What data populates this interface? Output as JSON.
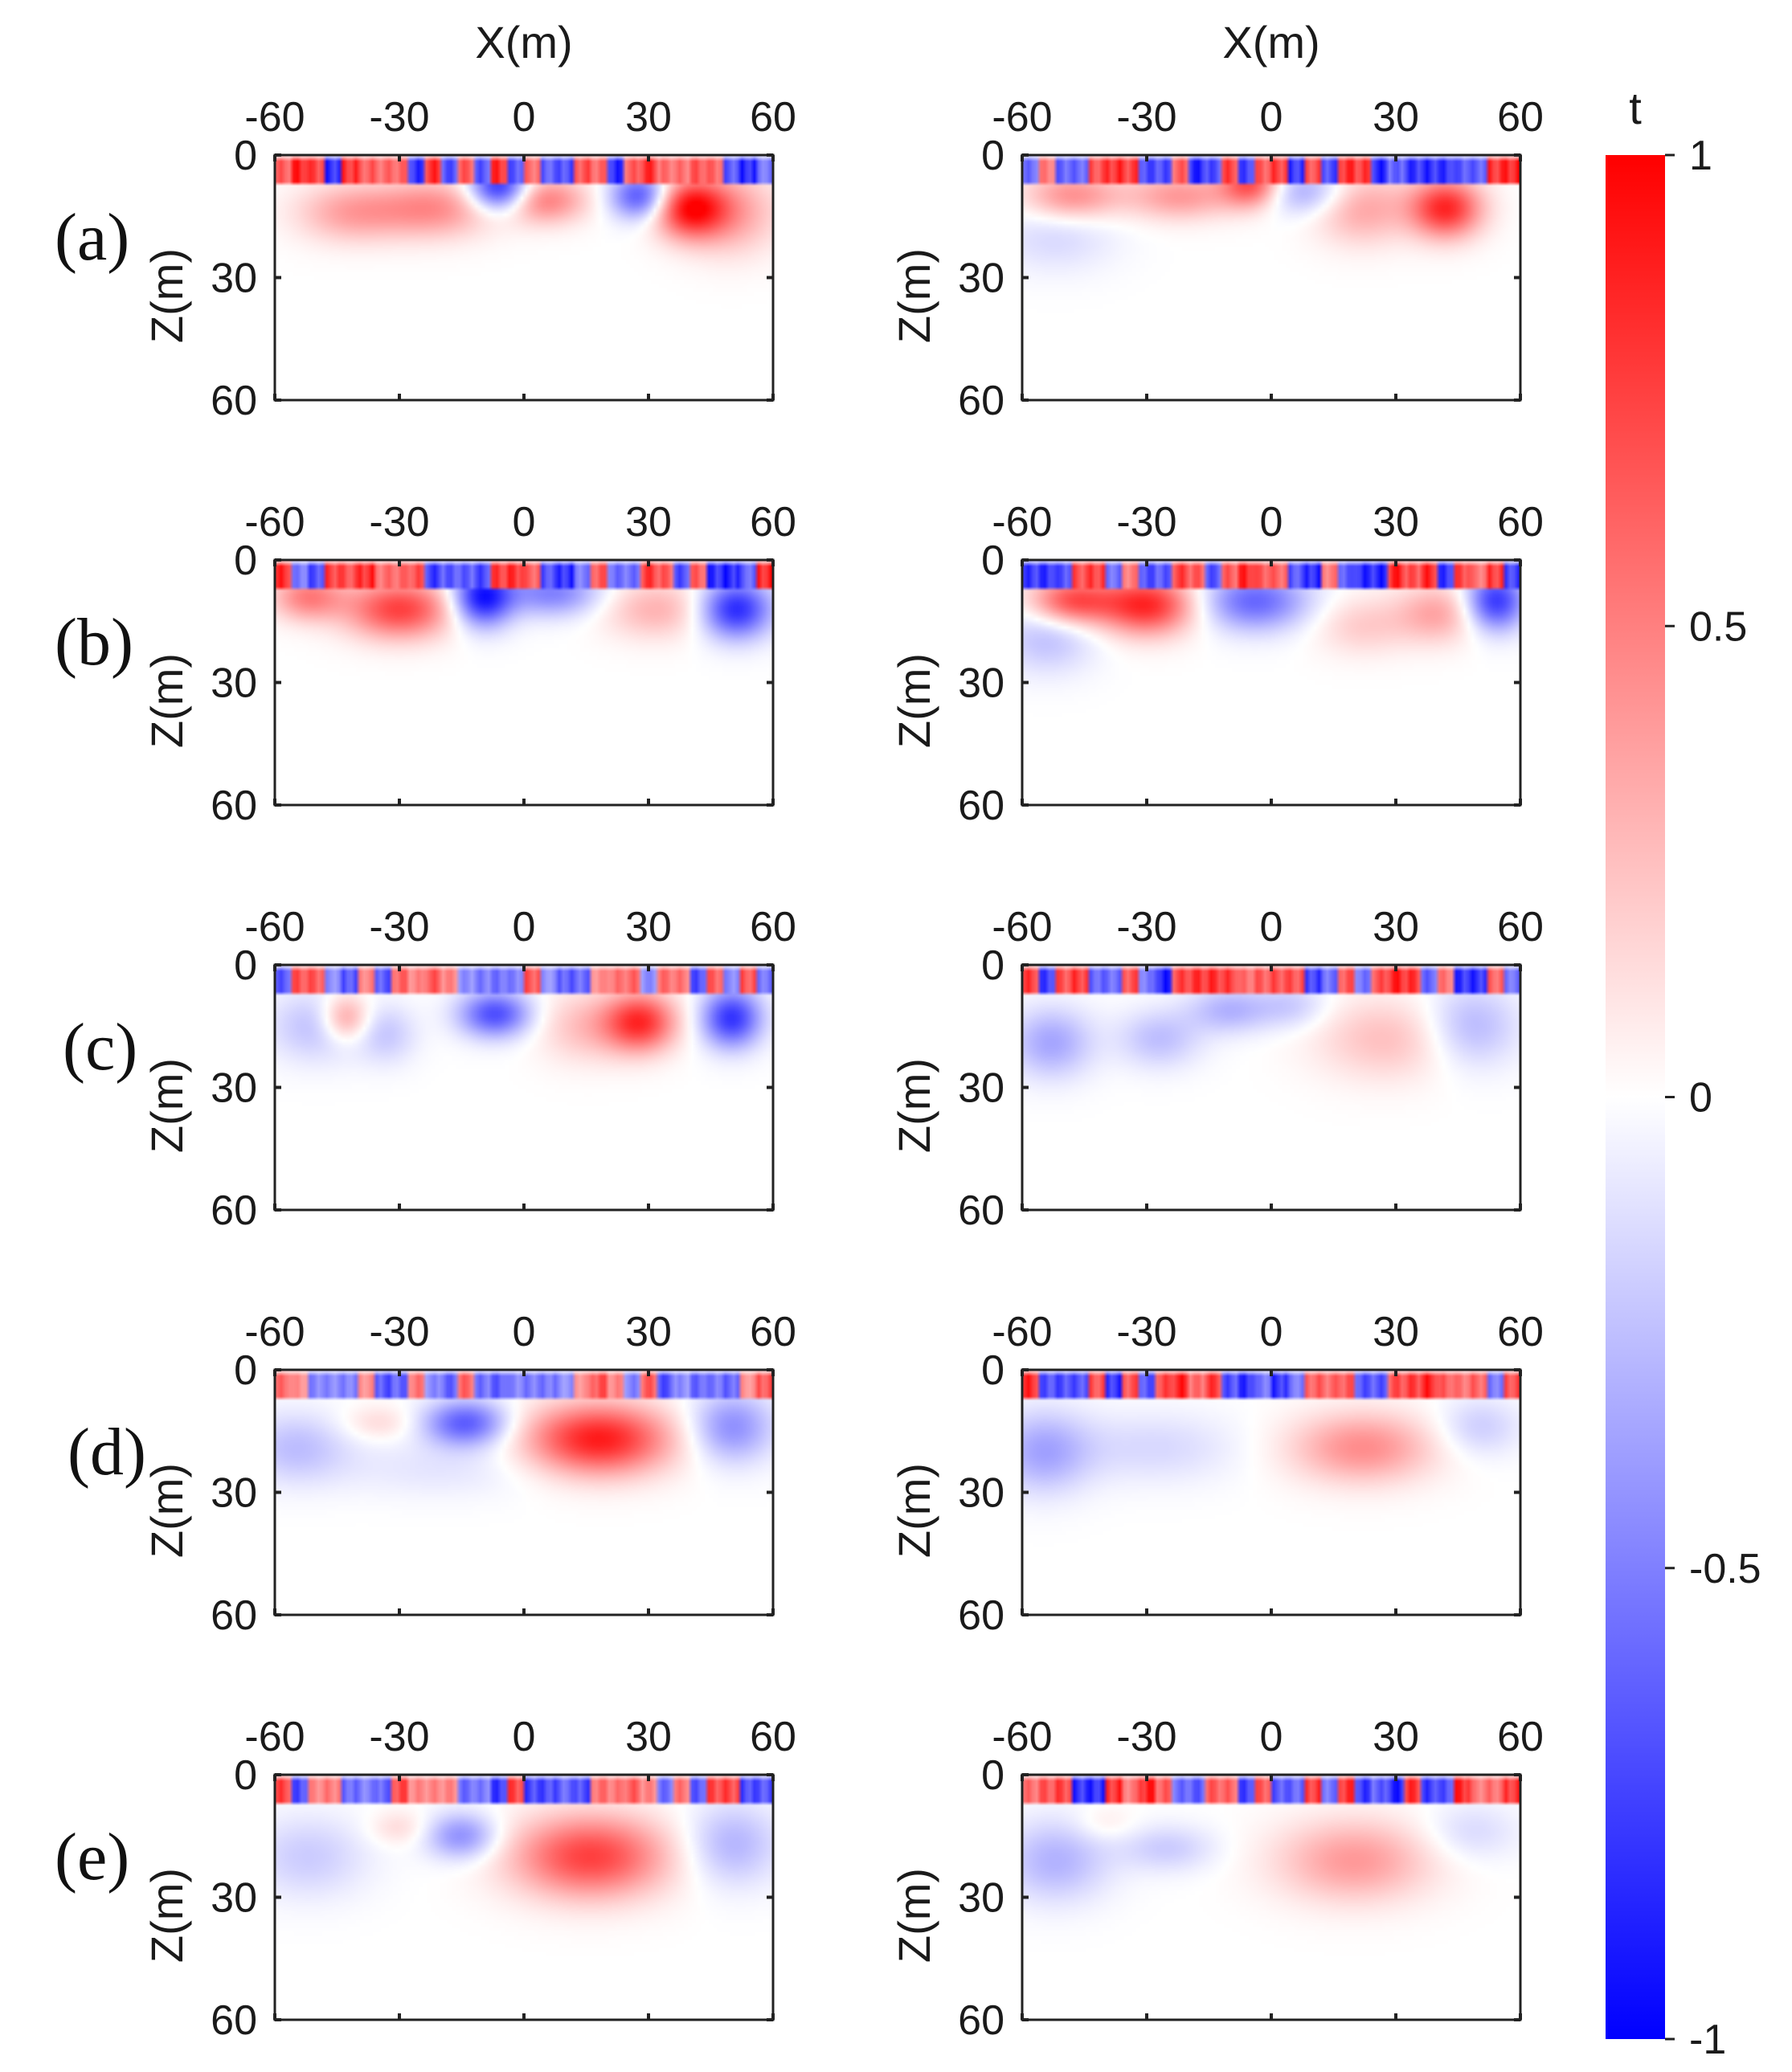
{
  "chart_data": {
    "type": "heatmap",
    "x_axis_label": "X(m)",
    "z_axis_label": "Z(m)",
    "x_ticks": [
      "-60",
      "-30",
      "0",
      "30",
      "60"
    ],
    "z_ticks": [
      "0",
      "30",
      "60"
    ],
    "xlim": [
      -60,
      60
    ],
    "zlim": [
      0,
      60
    ],
    "colorbar": {
      "label": "t",
      "ticks": [
        "1",
        "0.5",
        "0",
        "-0.5",
        "-1"
      ],
      "range": [
        -1,
        1
      ],
      "colormap": [
        "#0000ff",
        "#ffffff",
        "#ff0000"
      ]
    },
    "rows": [
      {
        "label": "(a)",
        "panels": [
          {
            "near_surface_noise": 1.0,
            "anomalies": [
              {
                "x": -42,
                "z": 14,
                "sx": 9,
                "sz": 5,
                "value": 0.35
              },
              {
                "x": -22,
                "z": 13,
                "sx": 10,
                "sz": 5,
                "value": 0.45
              },
              {
                "x": -6,
                "z": 8,
                "sx": 5,
                "sz": 4,
                "value": -0.9
              },
              {
                "x": 5,
                "z": 11,
                "sx": 7,
                "sz": 4,
                "value": 0.5
              },
              {
                "x": 28,
                "z": 10,
                "sx": 5,
                "sz": 4,
                "value": -0.7
              },
              {
                "x": 40,
                "z": 13,
                "sx": 6,
                "sz": 5,
                "value": 0.9
              },
              {
                "x": 50,
                "z": 14,
                "sx": 8,
                "sz": 7,
                "value": 0.35
              }
            ]
          },
          {
            "near_surface_noise": 1.0,
            "anomalies": [
              {
                "x": -52,
                "z": 20,
                "sx": 10,
                "sz": 6,
                "value": -0.15
              },
              {
                "x": -48,
                "z": 10,
                "sx": 8,
                "sz": 4,
                "value": 0.45
              },
              {
                "x": -22,
                "z": 10,
                "sx": 9,
                "sz": 4,
                "value": 0.4
              },
              {
                "x": -5,
                "z": 7,
                "sx": 5,
                "sz": 4,
                "value": 0.7
              },
              {
                "x": 8,
                "z": 9,
                "sx": 7,
                "sz": 4,
                "value": -0.35
              },
              {
                "x": 22,
                "z": 13,
                "sx": 8,
                "sz": 6,
                "value": 0.35
              },
              {
                "x": 42,
                "z": 13,
                "sx": 6,
                "sz": 5,
                "value": 0.85
              }
            ]
          }
        ]
      },
      {
        "label": "(b)",
        "panels": [
          {
            "near_surface_noise": 1.0,
            "anomalies": [
              {
                "x": -52,
                "z": 9,
                "sx": 6,
                "sz": 4,
                "value": 0.5
              },
              {
                "x": -30,
                "z": 12,
                "sx": 9,
                "sz": 5,
                "value": 0.75
              },
              {
                "x": -10,
                "z": 9,
                "sx": 5,
                "sz": 5,
                "value": -0.95
              },
              {
                "x": 7,
                "z": 8,
                "sx": 8,
                "sz": 4,
                "value": -0.5
              },
              {
                "x": 32,
                "z": 12,
                "sx": 9,
                "sz": 5,
                "value": 0.3
              },
              {
                "x": 51,
                "z": 12,
                "sx": 6,
                "sz": 5,
                "value": -0.85
              }
            ]
          },
          {
            "near_surface_noise": 1.0,
            "anomalies": [
              {
                "x": -54,
                "z": 19,
                "sx": 8,
                "sz": 6,
                "value": -0.25
              },
              {
                "x": -48,
                "z": 10,
                "sx": 7,
                "sz": 4,
                "value": 0.7
              },
              {
                "x": -30,
                "z": 11,
                "sx": 8,
                "sz": 5,
                "value": 0.85
              },
              {
                "x": -4,
                "z": 10,
                "sx": 9,
                "sz": 5,
                "value": -0.6
              },
              {
                "x": 22,
                "z": 16,
                "sx": 8,
                "sz": 5,
                "value": 0.2
              },
              {
                "x": 40,
                "z": 13,
                "sx": 7,
                "sz": 5,
                "value": 0.35
              },
              {
                "x": 54,
                "z": 10,
                "sx": 5,
                "sz": 5,
                "value": -0.8
              }
            ]
          }
        ]
      },
      {
        "label": "(c)",
        "panels": [
          {
            "near_surface_noise": 0.8,
            "anomalies": [
              {
                "x": -50,
                "z": 15,
                "sx": 8,
                "sz": 6,
                "value": -0.25
              },
              {
                "x": -43,
                "z": 13,
                "sx": 4,
                "sz": 4,
                "value": 0.45
              },
              {
                "x": -33,
                "z": 17,
                "sx": 5,
                "sz": 5,
                "value": -0.2
              },
              {
                "x": -7,
                "z": 12,
                "sx": 6,
                "sz": 4,
                "value": -0.7
              },
              {
                "x": 15,
                "z": 15,
                "sx": 8,
                "sz": 6,
                "value": 0.25
              },
              {
                "x": 28,
                "z": 14,
                "sx": 6,
                "sz": 5,
                "value": 0.8
              },
              {
                "x": 50,
                "z": 13,
                "sx": 5,
                "sz": 5,
                "value": -0.8
              }
            ]
          },
          {
            "near_surface_noise": 1.0,
            "anomalies": [
              {
                "x": -53,
                "z": 19,
                "sx": 7,
                "sz": 6,
                "value": -0.35
              },
              {
                "x": -27,
                "z": 18,
                "sx": 7,
                "sz": 5,
                "value": -0.25
              },
              {
                "x": -10,
                "z": 11,
                "sx": 7,
                "sz": 4,
                "value": -0.3
              },
              {
                "x": 5,
                "z": 10,
                "sx": 6,
                "sz": 4,
                "value": -0.2
              },
              {
                "x": 28,
                "z": 18,
                "sx": 12,
                "sz": 7,
                "value": 0.25
              },
              {
                "x": 48,
                "z": 15,
                "sx": 8,
                "sz": 7,
                "value": -0.3
              }
            ]
          }
        ]
      },
      {
        "label": "(d)",
        "panels": [
          {
            "near_surface_noise": 0.8,
            "anomalies": [
              {
                "x": -55,
                "z": 19,
                "sx": 9,
                "sz": 6,
                "value": -0.25
              },
              {
                "x": -35,
                "z": 13,
                "sx": 6,
                "sz": 3,
                "value": 0.15
              },
              {
                "x": -14,
                "z": 13,
                "sx": 7,
                "sz": 4,
                "value": -0.65
              },
              {
                "x": 18,
                "z": 17,
                "sx": 12,
                "sz": 6,
                "value": 0.9
              },
              {
                "x": 50,
                "z": 14,
                "sx": 7,
                "sz": 6,
                "value": -0.45
              },
              {
                "x": -20,
                "z": 24,
                "sx": 18,
                "sz": 5,
                "value": -0.1
              }
            ]
          },
          {
            "near_surface_noise": 1.0,
            "anomalies": [
              {
                "x": -55,
                "z": 20,
                "sx": 8,
                "sz": 7,
                "value": -0.35
              },
              {
                "x": -28,
                "z": 19,
                "sx": 14,
                "sz": 6,
                "value": -0.15
              },
              {
                "x": 22,
                "z": 19,
                "sx": 12,
                "sz": 6,
                "value": 0.45
              },
              {
                "x": 50,
                "z": 14,
                "sx": 7,
                "sz": 5,
                "value": -0.2
              }
            ]
          }
        ]
      },
      {
        "label": "(e)",
        "panels": [
          {
            "near_surface_noise": 0.9,
            "anomalies": [
              {
                "x": -52,
                "z": 20,
                "sx": 10,
                "sz": 7,
                "value": -0.2
              },
              {
                "x": -30,
                "z": 13,
                "sx": 5,
                "sz": 3,
                "value": 0.15
              },
              {
                "x": -15,
                "z": 15,
                "sx": 6,
                "sz": 4,
                "value": -0.45
              },
              {
                "x": 16,
                "z": 20,
                "sx": 13,
                "sz": 7,
                "value": 0.75
              },
              {
                "x": 50,
                "z": 17,
                "sx": 8,
                "sz": 7,
                "value": -0.3
              }
            ]
          },
          {
            "near_surface_noise": 1.0,
            "anomalies": [
              {
                "x": -52,
                "z": 21,
                "sx": 9,
                "sz": 7,
                "value": -0.3
              },
              {
                "x": -25,
                "z": 18,
                "sx": 8,
                "sz": 4,
                "value": -0.2
              },
              {
                "x": -40,
                "z": 12,
                "sx": 5,
                "sz": 3,
                "value": 0.1
              },
              {
                "x": 20,
                "z": 21,
                "sx": 13,
                "sz": 7,
                "value": 0.4
              },
              {
                "x": 48,
                "z": 14,
                "sx": 8,
                "sz": 5,
                "value": -0.15
              }
            ]
          }
        ]
      }
    ]
  }
}
